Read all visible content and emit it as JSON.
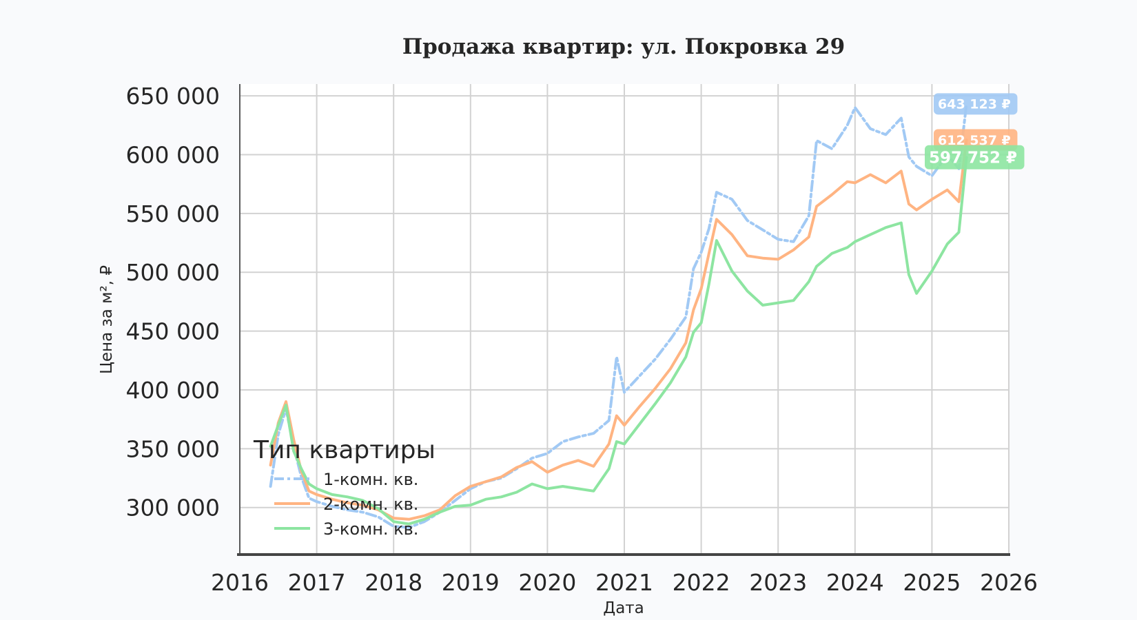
{
  "chart_data": {
    "type": "line",
    "title": "Продажа квартир: ул. Покровка 29",
    "xlabel": "Дата",
    "ylabel": "Цена за м², ₽",
    "xlim": [
      2016,
      2026
    ],
    "ylim": [
      260000,
      660000
    ],
    "x_ticks": [
      2016,
      2017,
      2018,
      2019,
      2020,
      2021,
      2022,
      2023,
      2024,
      2025,
      2026
    ],
    "y_ticks": [
      300000,
      350000,
      400000,
      450000,
      500000,
      550000,
      600000,
      650000
    ],
    "y_tick_labels": [
      "300 000",
      "350 000",
      "400 000",
      "450 000",
      "500 000",
      "550 000",
      "600 000",
      "650 000"
    ],
    "grid": true,
    "legend": {
      "title": "Тип квартиры",
      "position": "bottom-left"
    },
    "series": [
      {
        "name": "1-комн. кв.",
        "color": "#a1c9f4",
        "line_style": "dashdot",
        "end_label": "643 123 ₽",
        "points": [
          [
            2016.4,
            318000
          ],
          [
            2016.5,
            362000
          ],
          [
            2016.6,
            384000
          ],
          [
            2016.7,
            352000
          ],
          [
            2016.8,
            326000
          ],
          [
            2016.9,
            308000
          ],
          [
            2017.0,
            305000
          ],
          [
            2017.2,
            301000
          ],
          [
            2017.4,
            298000
          ],
          [
            2017.6,
            296000
          ],
          [
            2017.8,
            292000
          ],
          [
            2018.0,
            284000
          ],
          [
            2018.2,
            283000
          ],
          [
            2018.4,
            288000
          ],
          [
            2018.6,
            296000
          ],
          [
            2018.8,
            306000
          ],
          [
            2019.0,
            316000
          ],
          [
            2019.2,
            322000
          ],
          [
            2019.4,
            325000
          ],
          [
            2019.6,
            333000
          ],
          [
            2019.8,
            342000
          ],
          [
            2020.0,
            346000
          ],
          [
            2020.2,
            356000
          ],
          [
            2020.4,
            360000
          ],
          [
            2020.6,
            363000
          ],
          [
            2020.8,
            374000
          ],
          [
            2020.9,
            428000
          ],
          [
            2021.0,
            398000
          ],
          [
            2021.2,
            412000
          ],
          [
            2021.4,
            426000
          ],
          [
            2021.6,
            443000
          ],
          [
            2021.8,
            462000
          ],
          [
            2021.9,
            503000
          ],
          [
            2022.0,
            517000
          ],
          [
            2022.1,
            537000
          ],
          [
            2022.2,
            568000
          ],
          [
            2022.4,
            562000
          ],
          [
            2022.6,
            544000
          ],
          [
            2022.8,
            536000
          ],
          [
            2023.0,
            528000
          ],
          [
            2023.2,
            526000
          ],
          [
            2023.4,
            548000
          ],
          [
            2023.5,
            612000
          ],
          [
            2023.7,
            605000
          ],
          [
            2023.9,
            625000
          ],
          [
            2024.0,
            640000
          ],
          [
            2024.2,
            622000
          ],
          [
            2024.4,
            617000
          ],
          [
            2024.6,
            631000
          ],
          [
            2024.7,
            598000
          ],
          [
            2024.8,
            590000
          ],
          [
            2025.0,
            582000
          ],
          [
            2025.2,
            600000
          ],
          [
            2025.35,
            588000
          ],
          [
            2025.45,
            643123
          ]
        ]
      },
      {
        "name": "2-комн. кв.",
        "color": "#ffb482",
        "line_style": "solid",
        "end_label": "612 537 ₽",
        "points": [
          [
            2016.4,
            336000
          ],
          [
            2016.5,
            372000
          ],
          [
            2016.6,
            390000
          ],
          [
            2016.7,
            358000
          ],
          [
            2016.8,
            331000
          ],
          [
            2016.9,
            314000
          ],
          [
            2017.0,
            311000
          ],
          [
            2017.2,
            307000
          ],
          [
            2017.4,
            304000
          ],
          [
            2017.6,
            302000
          ],
          [
            2017.8,
            298000
          ],
          [
            2018.0,
            291000
          ],
          [
            2018.2,
            290000
          ],
          [
            2018.4,
            293000
          ],
          [
            2018.6,
            298000
          ],
          [
            2018.8,
            310000
          ],
          [
            2019.0,
            318000
          ],
          [
            2019.2,
            322000
          ],
          [
            2019.4,
            326000
          ],
          [
            2019.6,
            334000
          ],
          [
            2019.8,
            339000
          ],
          [
            2020.0,
            330000
          ],
          [
            2020.2,
            336000
          ],
          [
            2020.4,
            340000
          ],
          [
            2020.6,
            335000
          ],
          [
            2020.8,
            354000
          ],
          [
            2020.9,
            378000
          ],
          [
            2021.0,
            370000
          ],
          [
            2021.2,
            386000
          ],
          [
            2021.4,
            401000
          ],
          [
            2021.6,
            418000
          ],
          [
            2021.8,
            440000
          ],
          [
            2021.9,
            468000
          ],
          [
            2022.0,
            486000
          ],
          [
            2022.1,
            516000
          ],
          [
            2022.2,
            545000
          ],
          [
            2022.4,
            532000
          ],
          [
            2022.6,
            514000
          ],
          [
            2022.8,
            512000
          ],
          [
            2023.0,
            511000
          ],
          [
            2023.2,
            519000
          ],
          [
            2023.4,
            530000
          ],
          [
            2023.5,
            556000
          ],
          [
            2023.7,
            566000
          ],
          [
            2023.9,
            577000
          ],
          [
            2024.0,
            576000
          ],
          [
            2024.2,
            583000
          ],
          [
            2024.4,
            576000
          ],
          [
            2024.6,
            586000
          ],
          [
            2024.7,
            558000
          ],
          [
            2024.8,
            553000
          ],
          [
            2025.0,
            562000
          ],
          [
            2025.2,
            570000
          ],
          [
            2025.35,
            560000
          ],
          [
            2025.45,
            612537
          ]
        ]
      },
      {
        "name": "3-комн. кв.",
        "color": "#8de5a1",
        "line_style": "solid",
        "end_label": "597 752 ₽",
        "points": [
          [
            2016.4,
            352000
          ],
          [
            2016.5,
            370000
          ],
          [
            2016.6,
            387000
          ],
          [
            2016.7,
            348000
          ],
          [
            2016.8,
            333000
          ],
          [
            2016.9,
            320000
          ],
          [
            2017.0,
            316000
          ],
          [
            2017.2,
            311000
          ],
          [
            2017.4,
            309000
          ],
          [
            2017.6,
            306000
          ],
          [
            2017.8,
            299000
          ],
          [
            2018.0,
            288000
          ],
          [
            2018.2,
            286000
          ],
          [
            2018.4,
            290000
          ],
          [
            2018.6,
            296000
          ],
          [
            2018.8,
            301000
          ],
          [
            2019.0,
            302000
          ],
          [
            2019.2,
            307000
          ],
          [
            2019.4,
            309000
          ],
          [
            2019.6,
            313000
          ],
          [
            2019.8,
            320000
          ],
          [
            2020.0,
            316000
          ],
          [
            2020.2,
            318000
          ],
          [
            2020.4,
            316000
          ],
          [
            2020.6,
            314000
          ],
          [
            2020.8,
            333000
          ],
          [
            2020.9,
            356000
          ],
          [
            2021.0,
            354000
          ],
          [
            2021.2,
            371000
          ],
          [
            2021.4,
            388000
          ],
          [
            2021.6,
            406000
          ],
          [
            2021.8,
            428000
          ],
          [
            2021.9,
            449000
          ],
          [
            2022.0,
            457000
          ],
          [
            2022.1,
            490000
          ],
          [
            2022.2,
            527000
          ],
          [
            2022.4,
            501000
          ],
          [
            2022.6,
            484000
          ],
          [
            2022.8,
            472000
          ],
          [
            2023.0,
            474000
          ],
          [
            2023.2,
            476000
          ],
          [
            2023.4,
            492000
          ],
          [
            2023.5,
            505000
          ],
          [
            2023.7,
            516000
          ],
          [
            2023.9,
            521000
          ],
          [
            2024.0,
            526000
          ],
          [
            2024.2,
            532000
          ],
          [
            2024.4,
            538000
          ],
          [
            2024.6,
            542000
          ],
          [
            2024.7,
            498000
          ],
          [
            2024.8,
            482000
          ],
          [
            2025.0,
            501000
          ],
          [
            2025.2,
            524000
          ],
          [
            2025.35,
            534000
          ],
          [
            2025.45,
            597752
          ]
        ]
      }
    ]
  }
}
